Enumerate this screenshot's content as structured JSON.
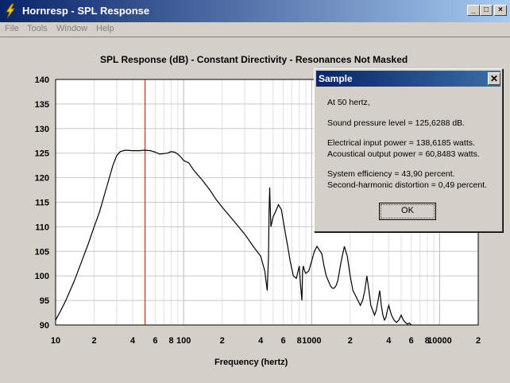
{
  "window": {
    "title": "Hornresp - SPL Response",
    "controls": {
      "minimize": "_",
      "maximize": "□",
      "close": "×"
    }
  },
  "menu": {
    "items": [
      "File",
      "Tools",
      "Window",
      "Help"
    ]
  },
  "icons": {
    "app": "lightning-icon",
    "close": "close-icon"
  },
  "colors": {
    "titlebar_start": "#0a246a",
    "titlebar_end": "#a6caf0",
    "marker": "#cc0000",
    "curve": "#000000"
  },
  "chart_data": {
    "type": "line",
    "title": "SPL Response (dB) - Constant Directivity - Resonances Not Masked",
    "xlabel": "Frequency (hertz)",
    "ylabel": "",
    "xscale": "log",
    "xlim": [
      10,
      20000
    ],
    "ylim": [
      90,
      140
    ],
    "yticks": [
      90,
      95,
      100,
      105,
      110,
      115,
      120,
      125,
      130,
      135,
      140
    ],
    "xtick_labels": [
      {
        "f": 10,
        "label": "10"
      },
      {
        "f": 20,
        "label": "2"
      },
      {
        "f": 40,
        "label": "4"
      },
      {
        "f": 60,
        "label": "6"
      },
      {
        "f": 80,
        "label": "8"
      },
      {
        "f": 100,
        "label": "100"
      },
      {
        "f": 200,
        "label": "2"
      },
      {
        "f": 400,
        "label": "4"
      },
      {
        "f": 600,
        "label": "6"
      },
      {
        "f": 800,
        "label": "8"
      },
      {
        "f": 1000,
        "label": "1000"
      },
      {
        "f": 2000,
        "label": "2"
      },
      {
        "f": 4000,
        "label": "4"
      },
      {
        "f": 6000,
        "label": "6"
      },
      {
        "f": 8000,
        "label": "8"
      },
      {
        "f": 10000,
        "label": "10000"
      },
      {
        "f": 20000,
        "label": "2"
      }
    ],
    "grid": true,
    "marker_frequency": 50,
    "series": [
      {
        "x": [
          10,
          11,
          12,
          14,
          16,
          18,
          20,
          22,
          25,
          28,
          30,
          32,
          35,
          40,
          45,
          50,
          55,
          60,
          65,
          70,
          75,
          80,
          85,
          90,
          95,
          100,
          110,
          120,
          140,
          160,
          180,
          200,
          250,
          300,
          350,
          400,
          430,
          450,
          460,
          465,
          470,
          475,
          480,
          490,
          500,
          520,
          550,
          580,
          620,
          650,
          680,
          720,
          760,
          800,
          820,
          840,
          850,
          860,
          880,
          900,
          950,
          1000,
          1050,
          1100,
          1200,
          1250,
          1300,
          1350,
          1400,
          1450,
          1500,
          1550,
          1600,
          1650,
          1700,
          1800,
          1900,
          2000,
          2100,
          2200,
          2300,
          2400,
          2500,
          2600,
          2700,
          2800,
          2900,
          3000,
          3100,
          3200,
          3300,
          3400,
          3500,
          3600,
          3700,
          3800,
          3900,
          4000,
          4200,
          4400,
          4600,
          4800,
          5000,
          5200,
          5400,
          5600,
          5800,
          6000
        ],
        "values": [
          91,
          93,
          95,
          99,
          103,
          106.5,
          110,
          113,
          118,
          122.5,
          124.5,
          125.3,
          125.6,
          125.5,
          125.5,
          125.6,
          125.5,
          125.2,
          124.8,
          124.9,
          125,
          125.3,
          125.2,
          124.8,
          124.2,
          123.5,
          123,
          121.5,
          119.5,
          117.5,
          115.5,
          114,
          111,
          108.5,
          106,
          104,
          101,
          97,
          104,
          113,
          118,
          114,
          110,
          111,
          112,
          113,
          114.5,
          113.5,
          109,
          106,
          103,
          100,
          99.5,
          102,
          98,
          95,
          101,
          102,
          101,
          100.5,
          101,
          103,
          105,
          106,
          104.5,
          102,
          100,
          99,
          98,
          97.5,
          97.5,
          98,
          99,
          101,
          103,
          106,
          104,
          100,
          97,
          96,
          95,
          94,
          95,
          97,
          100,
          97,
          94,
          93,
          92,
          93,
          95,
          97,
          94,
          92,
          91,
          91.5,
          93,
          94,
          92,
          91,
          90.5,
          91,
          92,
          91,
          90.5,
          90.2,
          90.4,
          90
        ]
      }
    ]
  },
  "dialog": {
    "title": "Sample",
    "lines": [
      "At 50 hertz,",
      "Sound pressure level = 125,6288 dB.",
      "Electrical input power = 138,6185 watts.",
      "Acoustical output power = 60,8483 watts.",
      "System efficiency = 43,90 percent.",
      "Second-harmonic distortion = 0,49 percent."
    ],
    "ok_label": "OK"
  }
}
